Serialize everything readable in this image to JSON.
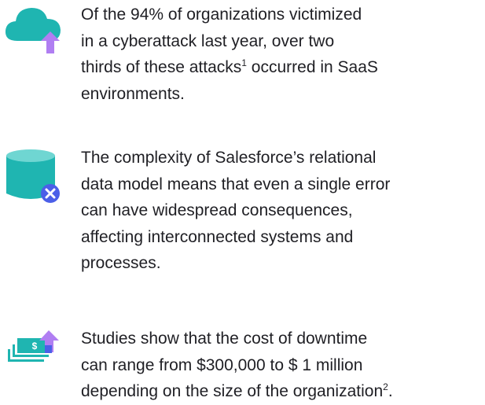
{
  "items": [
    {
      "lines": [
        {
          "text": "Of the 94% of organizations victimized"
        },
        {
          "text": "in a cyberattack last year, over two"
        },
        {
          "text": "thirds of these attacks",
          "sup": "1",
          "after": " occurred in SaaS"
        },
        {
          "text": "environments."
        }
      ]
    },
    {
      "lines": [
        {
          "text": "The complexity of Salesforce’s relational"
        },
        {
          "text": "data model means that even a single error"
        },
        {
          "text": "can have widespread consequences,"
        },
        {
          "text": "affecting interconnected systems and"
        },
        {
          "text": "processes."
        }
      ]
    },
    {
      "lines": [
        {
          "text": "Studies show that the cost of downtime"
        },
        {
          "text": "can range from $300,000 to $ 1 million"
        },
        {
          "text": "depending on the size of the organization",
          "sup": "2",
          "after": "."
        }
      ]
    }
  ]
}
